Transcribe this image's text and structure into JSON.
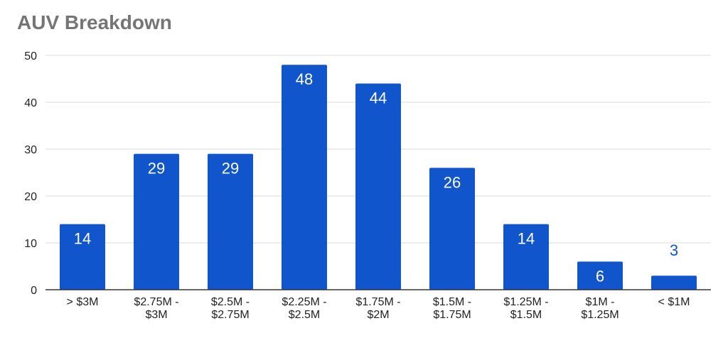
{
  "chart_data": {
    "type": "bar",
    "title": "AUV Breakdown",
    "xlabel": "",
    "ylabel": "",
    "ylim": [
      0,
      50
    ],
    "yticks": [
      "0",
      "10",
      "20",
      "30",
      "40",
      "50"
    ],
    "categories": [
      [
        "> $3M"
      ],
      [
        "$2.75M -",
        "$3M"
      ],
      [
        "$2.5M -",
        "$2.75M"
      ],
      [
        "$2.25M -",
        "$2.5M"
      ],
      [
        "$1.75M -",
        "$2M"
      ],
      [
        "$1.5M -",
        "$1.75M"
      ],
      [
        "$1.25M -",
        "$1.5M"
      ],
      [
        "$1M -",
        "$1.25M"
      ],
      [
        "< $1M"
      ]
    ],
    "values": [
      14,
      29,
      29,
      48,
      44,
      26,
      14,
      6,
      3
    ],
    "data_labels": [
      "14",
      "29",
      "29",
      "48",
      "44",
      "26",
      "14",
      "6",
      "3"
    ],
    "grid": true,
    "legend": "none",
    "colors": {
      "bar": "#1155CC",
      "title": "#757575",
      "grid": "#D9D9D9",
      "axis": "#333333",
      "label_inside": "#FFFFFF",
      "label_outside": "#1155CC"
    }
  }
}
